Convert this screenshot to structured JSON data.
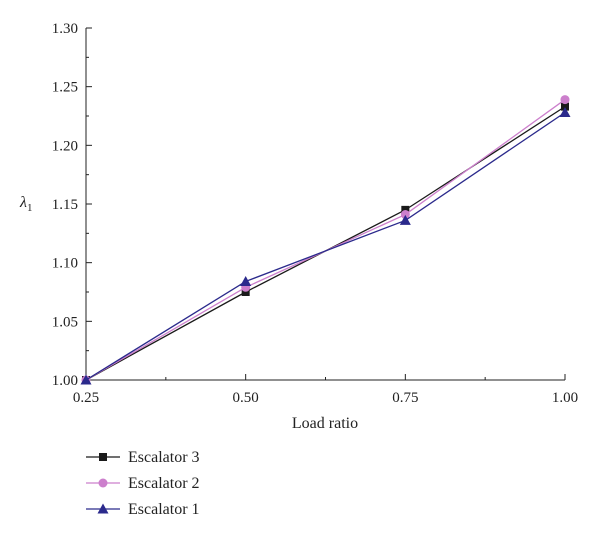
{
  "chart_data": {
    "type": "line",
    "title": "",
    "xlabel": "Load ratio",
    "ylabel": "λ1",
    "x": [
      0.25,
      0.5,
      0.75,
      1.0
    ],
    "xlim": [
      0.25,
      1.0
    ],
    "ylim": [
      1.0,
      1.3
    ],
    "xticks": [
      "0.25",
      "0.50",
      "0.75",
      "1.00"
    ],
    "yticks": [
      "1.00",
      "1.05",
      "1.10",
      "1.15",
      "1.20",
      "1.25",
      "1.30"
    ],
    "grid": false,
    "legend_position": "bottom-left, below plot",
    "series": [
      {
        "name": "Escalator 3",
        "values": [
          1.0,
          1.075,
          1.145,
          1.233
        ],
        "color": "#1a1a1a",
        "marker": "square"
      },
      {
        "name": "Escalator 2",
        "values": [
          1.0,
          1.079,
          1.141,
          1.239
        ],
        "color": "#cc7fcc",
        "marker": "circle"
      },
      {
        "name": "Escalator 1",
        "values": [
          1.0,
          1.084,
          1.136,
          1.228
        ],
        "color": "#2b2a8c",
        "marker": "triangle"
      }
    ]
  }
}
